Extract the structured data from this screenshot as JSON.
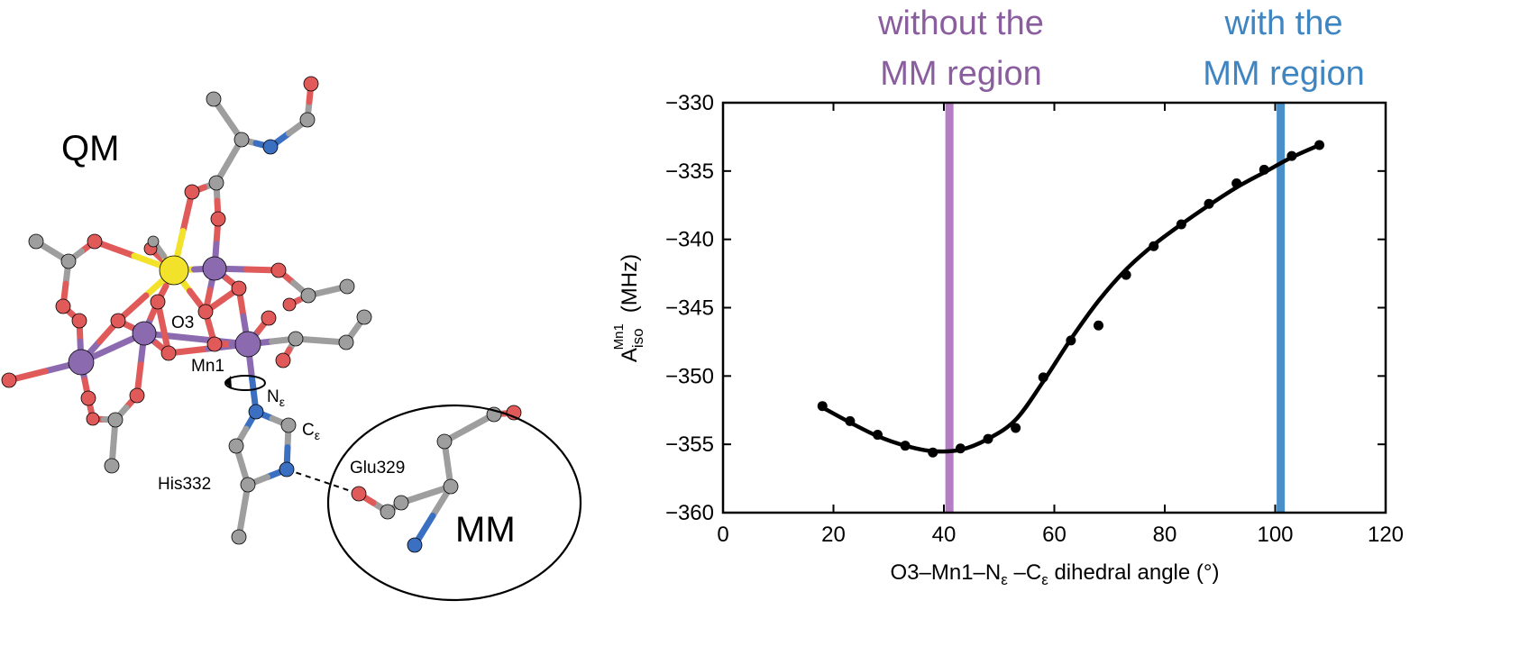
{
  "structure": {
    "qm_label": "QM",
    "mm_label": "MM",
    "atom_labels": {
      "o3": "O3",
      "mn1": "Mn1",
      "n_eps_main": "N",
      "n_eps_sub": "ε",
      "c_eps_main": "C",
      "c_eps_sub": "ε",
      "his": "His332",
      "glu": "Glu329"
    },
    "colors": {
      "carbon": "#9e9e9e",
      "oxygen": "#e05a5a",
      "manganese": "#8c6ab0",
      "calcium": "#f2e32a",
      "nitrogen": "#3a6fc2"
    }
  },
  "annotations": {
    "without_line1": "without the",
    "without_line2": "MM region",
    "without_color": "#8a5d9e",
    "with_line1": "with the",
    "with_line2": "MM region",
    "with_color": "#3f85c2"
  },
  "chart_data": {
    "type": "line",
    "xlabel_prefix": "O3–Mn1–N",
    "xlabel_sub1": "ε",
    "xlabel_mid": " –C",
    "xlabel_sub2": "ε",
    "xlabel_suffix": " dihedral angle (°)",
    "ylabel_main": "A",
    "ylabel_sub": "iso",
    "ylabel_sup": "Mn1",
    "ylabel_unit": "(MHz)",
    "xlim": [
      0,
      120
    ],
    "ylim": [
      -360,
      -330
    ],
    "xticks": [
      0,
      20,
      40,
      60,
      80,
      100,
      120
    ],
    "yticks": [
      -330,
      -335,
      -340,
      -345,
      -350,
      -355,
      -360
    ],
    "xtick_labels": [
      "0",
      "20",
      "40",
      "60",
      "80",
      "100",
      "120"
    ],
    "ytick_labels": [
      "−330",
      "−335",
      "−340",
      "−345",
      "−350",
      "−355",
      "−360"
    ],
    "points": {
      "x": [
        18,
        23,
        28,
        33,
        38,
        43,
        48,
        53,
        58,
        63,
        68,
        73,
        78,
        83,
        88,
        93,
        98,
        103,
        108
      ],
      "y": [
        -352.2,
        -353.3,
        -354.3,
        -355.1,
        -355.6,
        -355.3,
        -354.6,
        -353.8,
        -350.1,
        -347.4,
        -346.3,
        -342.6,
        -340.5,
        -338.9,
        -337.4,
        -335.9,
        -334.9,
        -333.9,
        -333.1
      ]
    },
    "fit": {
      "x": [
        18,
        23,
        28,
        33,
        38,
        43,
        48,
        53,
        58,
        63,
        68,
        73,
        78,
        83,
        88,
        93,
        98,
        103,
        108
      ],
      "y": [
        -352.3,
        -353.4,
        -354.4,
        -355.1,
        -355.5,
        -355.4,
        -354.6,
        -353.2,
        -350.4,
        -347.3,
        -344.5,
        -342.2,
        -340.4,
        -338.9,
        -337.5,
        -336.2,
        -335.1,
        -334.0,
        -333.1
      ]
    },
    "vlines": [
      {
        "x": 41,
        "color": "#b57ec4"
      },
      {
        "x": 101,
        "color": "#4a8fc8"
      }
    ]
  }
}
